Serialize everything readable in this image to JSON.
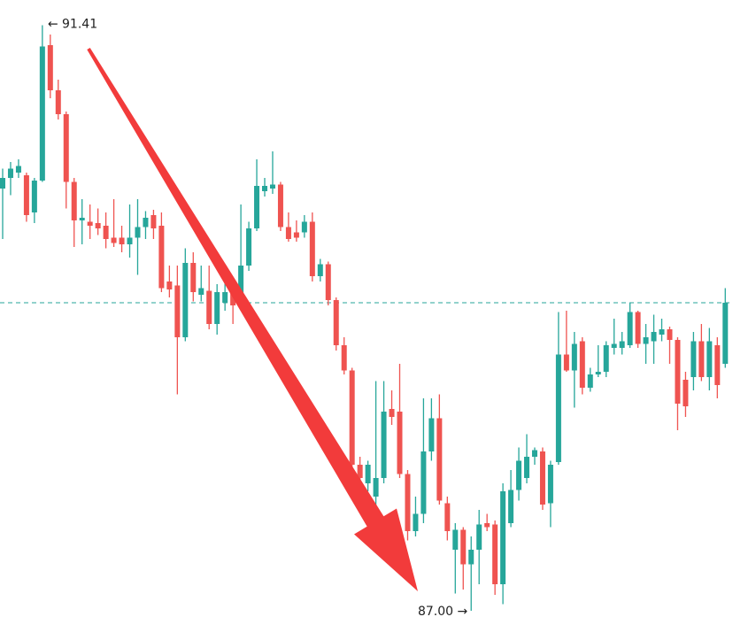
{
  "chart_data": {
    "type": "candlestick",
    "up_color": "#26a69a",
    "down_color": "#ef5350",
    "ylim": [
      86.78,
      91.6
    ],
    "hline": 89.32,
    "hline_color": "#26a69a",
    "high_label": "← 91.41",
    "low_label": "87.00 →",
    "open": [
      90.18,
      90.26,
      90.3,
      90.28,
      90.0,
      90.24,
      91.26,
      90.92,
      90.74,
      90.23,
      89.94,
      89.93,
      89.92,
      89.9,
      89.81,
      89.81,
      89.76,
      89.81,
      89.89,
      89.98,
      89.9,
      89.48,
      89.45,
      89.06,
      89.62,
      89.38,
      89.41,
      89.16,
      89.32,
      89.4,
      89.33,
      89.6,
      89.88,
      90.16,
      90.18,
      90.21,
      89.89,
      89.85,
      89.85,
      89.93,
      89.52,
      89.61,
      89.34,
      89.0,
      88.81,
      88.1,
      87.96,
      87.86,
      88.0,
      88.52,
      88.5,
      88.03,
      87.6,
      87.73,
      88.2,
      88.45,
      87.81,
      87.46,
      87.61,
      87.35,
      87.46,
      87.66,
      87.65,
      87.2,
      87.66,
      87.91,
      88.0,
      88.16,
      88.2,
      87.81,
      88.12,
      88.93,
      88.81,
      89.03,
      88.68,
      88.78,
      88.8,
      88.98,
      88.98,
      89.0,
      89.25,
      89.01,
      89.03,
      89.08,
      89.12,
      89.04,
      88.74,
      88.76,
      89.03,
      88.76,
      89.0,
      88.86
    ],
    "high": [
      90.33,
      90.38,
      90.4,
      90.3,
      90.26,
      91.41,
      91.34,
      91.0,
      90.76,
      90.26,
      90.1,
      90.06,
      90.03,
      90.0,
      90.1,
      89.9,
      90.06,
      90.1,
      90.01,
      90.02,
      90.0,
      89.6,
      89.6,
      89.73,
      89.7,
      89.6,
      89.6,
      89.46,
      89.53,
      89.46,
      90.06,
      89.93,
      90.4,
      90.26,
      90.46,
      90.23,
      90.0,
      89.94,
      89.98,
      90.0,
      89.65,
      89.63,
      89.36,
      89.06,
      88.83,
      88.16,
      88.13,
      88.73,
      88.73,
      88.66,
      88.86,
      88.06,
      87.86,
      88.6,
      88.6,
      88.63,
      87.86,
      87.66,
      87.63,
      87.56,
      87.76,
      87.73,
      87.68,
      87.96,
      88.06,
      88.23,
      88.33,
      88.23,
      88.23,
      88.13,
      89.25,
      89.26,
      89.1,
      89.06,
      88.83,
      89.0,
      89.03,
      89.2,
      89.1,
      89.32,
      89.26,
      89.16,
      89.23,
      89.2,
      89.14,
      89.06,
      88.8,
      89.1,
      89.16,
      89.13,
      89.06,
      89.43
    ],
    "low": [
      89.8,
      90.13,
      90.26,
      89.93,
      89.92,
      90.23,
      90.86,
      90.7,
      90.03,
      89.74,
      89.76,
      89.8,
      89.83,
      89.73,
      89.74,
      89.7,
      89.66,
      89.53,
      89.8,
      89.8,
      89.4,
      89.36,
      88.63,
      89.03,
      89.33,
      89.33,
      89.12,
      89.08,
      89.26,
      89.16,
      89.26,
      89.56,
      89.86,
      90.12,
      90.14,
      89.86,
      89.78,
      89.78,
      89.81,
      89.48,
      89.48,
      89.3,
      88.96,
      88.78,
      88.03,
      87.93,
      87.9,
      87.73,
      87.96,
      88.4,
      88.0,
      87.53,
      87.56,
      87.66,
      88.13,
      87.8,
      87.53,
      87.13,
      87.16,
      87.0,
      87.2,
      87.6,
      87.12,
      87.05,
      87.63,
      87.83,
      87.96,
      88.1,
      87.76,
      87.63,
      88.1,
      88.8,
      88.53,
      88.63,
      88.65,
      88.76,
      88.76,
      88.93,
      88.93,
      88.98,
      88.98,
      88.86,
      88.86,
      89.03,
      88.86,
      88.36,
      88.46,
      88.66,
      88.73,
      88.66,
      88.6,
      88.83
    ],
    "close": [
      90.26,
      90.33,
      90.35,
      89.98,
      90.24,
      91.25,
      90.92,
      90.74,
      90.23,
      89.94,
      89.96,
      89.9,
      89.88,
      89.8,
      89.77,
      89.76,
      89.81,
      89.89,
      89.96,
      89.88,
      89.43,
      89.42,
      89.06,
      89.62,
      89.4,
      89.43,
      89.16,
      89.4,
      89.4,
      89.3,
      89.6,
      89.88,
      90.2,
      90.2,
      90.21,
      89.89,
      89.8,
      89.81,
      89.93,
      89.52,
      89.61,
      89.34,
      89.0,
      88.81,
      88.1,
      88.0,
      88.1,
      88.0,
      88.5,
      88.46,
      88.03,
      87.6,
      87.73,
      88.2,
      88.45,
      87.83,
      87.6,
      87.61,
      87.35,
      87.46,
      87.65,
      87.63,
      87.2,
      87.9,
      87.91,
      88.13,
      88.16,
      88.21,
      87.8,
      88.1,
      88.93,
      88.81,
      89.01,
      88.68,
      88.78,
      88.8,
      89.0,
      89.01,
      89.03,
      89.25,
      89.01,
      89.06,
      89.1,
      89.12,
      89.04,
      88.56,
      88.54,
      89.03,
      88.76,
      89.03,
      88.7,
      89.32
    ]
  }
}
